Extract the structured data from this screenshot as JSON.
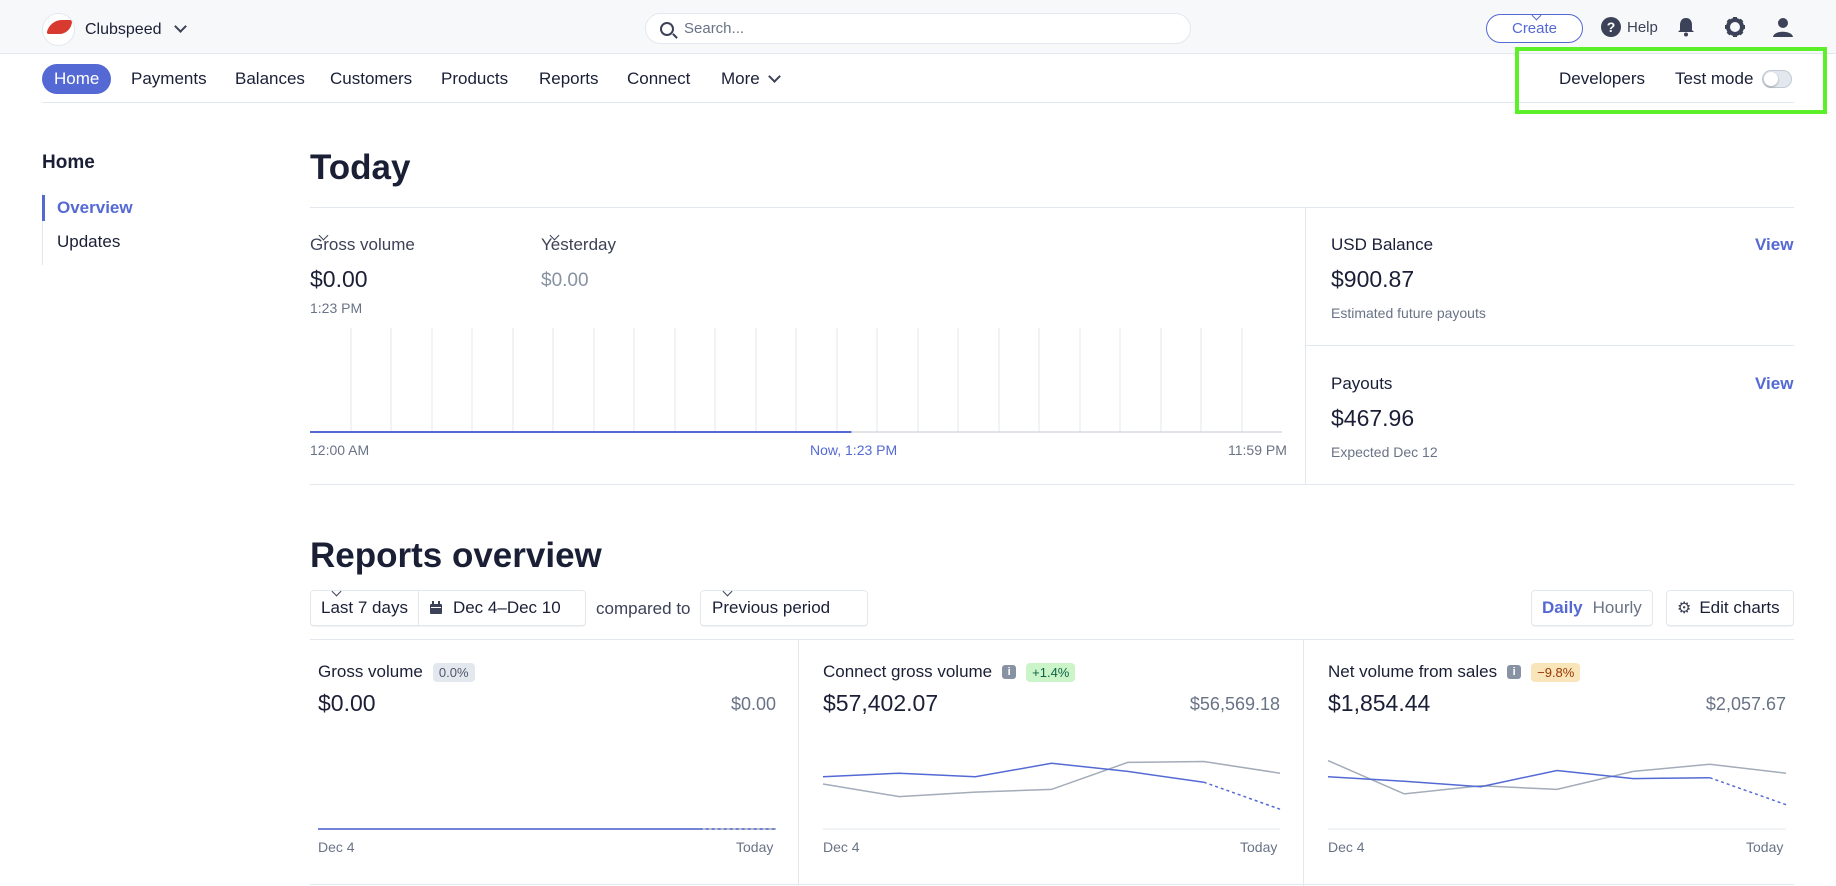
{
  "topbar": {
    "account_name": "Clubspeed",
    "search_placeholder": "Search...",
    "create_label": "Create",
    "help_label": "Help",
    "icons": [
      "search-icon",
      "help-icon",
      "bell-icon",
      "gear-icon",
      "user-icon"
    ]
  },
  "nav": {
    "items": [
      "Home",
      "Payments",
      "Balances",
      "Customers",
      "Products",
      "Reports",
      "Connect",
      "More"
    ],
    "developers": "Developers",
    "test_mode": "Test mode",
    "test_mode_on": false
  },
  "sidebar": {
    "title": "Home",
    "items": [
      "Overview",
      "Updates"
    ]
  },
  "today": {
    "title": "Today",
    "gross_label": "Gross volume",
    "gross_value": "$0.00",
    "gross_time": "1:23 PM",
    "yesterday_label": "Yesterday",
    "yesterday_value": "$0.00",
    "axis_start": "12:00 AM",
    "axis_now": "Now, 1:23 PM",
    "axis_end": "11:59 PM",
    "usd_balance_label": "USD Balance",
    "usd_balance_value": "$900.87",
    "usd_balance_note": "Estimated future payouts",
    "payouts_label": "Payouts",
    "payouts_value": "$467.96",
    "payouts_note": "Expected Dec 12",
    "view_label": "View"
  },
  "reports": {
    "title": "Reports overview",
    "range": "Last 7 days",
    "dates": "Dec 4–Dec 10",
    "compared_to": "compared to",
    "previous": "Previous period",
    "daily": "Daily",
    "hourly": "Hourly",
    "edit_charts": "Edit charts",
    "colors": {
      "current": "#5469d4",
      "previous": "#a3acb9"
    },
    "cards": [
      {
        "title": "Gross volume",
        "badge": "0.0%",
        "badge_color": "#e3e8ee",
        "badge_text": "#4f566b",
        "info": false,
        "value": "$0.00",
        "previous": "$0.00",
        "x_start": "Dec 4",
        "x_end": "Today"
      },
      {
        "title": "Connect gross volume",
        "badge": "+1.4%",
        "badge_color": "#cbf4c9",
        "badge_text": "#0e6245",
        "info": true,
        "value": "$57,402.07",
        "previous": "$56,569.18",
        "x_start": "Dec 4",
        "x_end": "Today"
      },
      {
        "title": "Net volume from sales",
        "badge": "−9.8%",
        "badge_color": "#f8e5b9",
        "badge_text": "#983705",
        "info": true,
        "value": "$1,854.44",
        "previous": "$2,057.67",
        "x_start": "Dec 4",
        "x_end": "Today"
      }
    ]
  },
  "chart_data": [
    {
      "type": "line",
      "series": [
        {
          "values": [
            0,
            0,
            0,
            0,
            0,
            0,
            0
          ]
        },
        {
          "values": [
            0,
            0,
            0,
            0,
            0,
            0,
            0
          ]
        }
      ]
    },
    {
      "type": "line",
      "series": [
        {
          "values": [
            0.58,
            0.62,
            0.58,
            0.73,
            0.64,
            0.52,
            0.22
          ]
        },
        {
          "values": [
            0.5,
            0.36,
            0.41,
            0.44,
            0.74,
            0.75,
            0.62
          ]
        }
      ]
    },
    {
      "type": "line",
      "series": [
        {
          "values": [
            0.58,
            0.53,
            0.47,
            0.65,
            0.56,
            0.57,
            0.27
          ]
        },
        {
          "values": [
            0.76,
            0.39,
            0.48,
            0.44,
            0.64,
            0.72,
            0.62
          ]
        }
      ]
    }
  ]
}
